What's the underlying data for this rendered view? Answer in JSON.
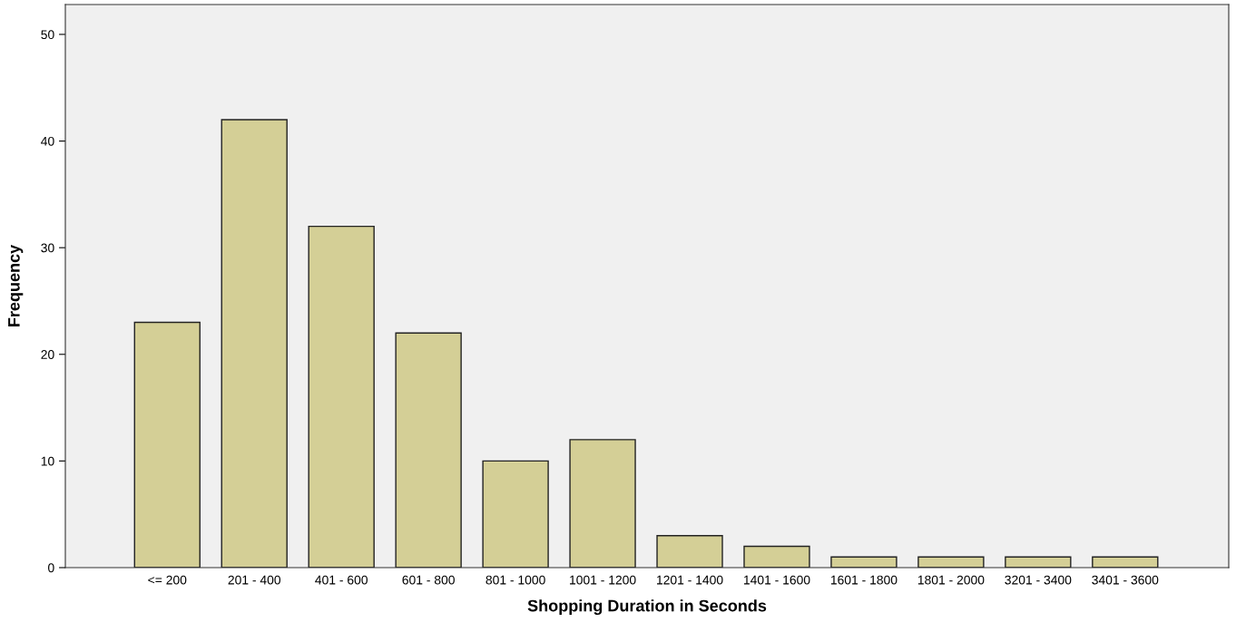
{
  "chart_data": {
    "type": "bar",
    "xlabel": "Shopping Duration in Seconds",
    "ylabel": "Frequency",
    "categories": [
      "<= 200",
      "201 - 400",
      "401 - 600",
      "601 - 800",
      "801 - 1000",
      "1001 - 1200",
      "1201 - 1400",
      "1401 - 1600",
      "1601 - 1800",
      "1801 - 2000",
      "3201 - 3400",
      "3401 - 3600"
    ],
    "values": [
      23,
      42,
      32,
      22,
      10,
      12,
      3,
      2,
      1,
      1,
      1,
      1
    ],
    "color": "#d4cf96",
    "ylim": [
      0,
      52.8
    ],
    "yticks": [
      0,
      10,
      20,
      30,
      40,
      50
    ],
    "grid": false
  }
}
